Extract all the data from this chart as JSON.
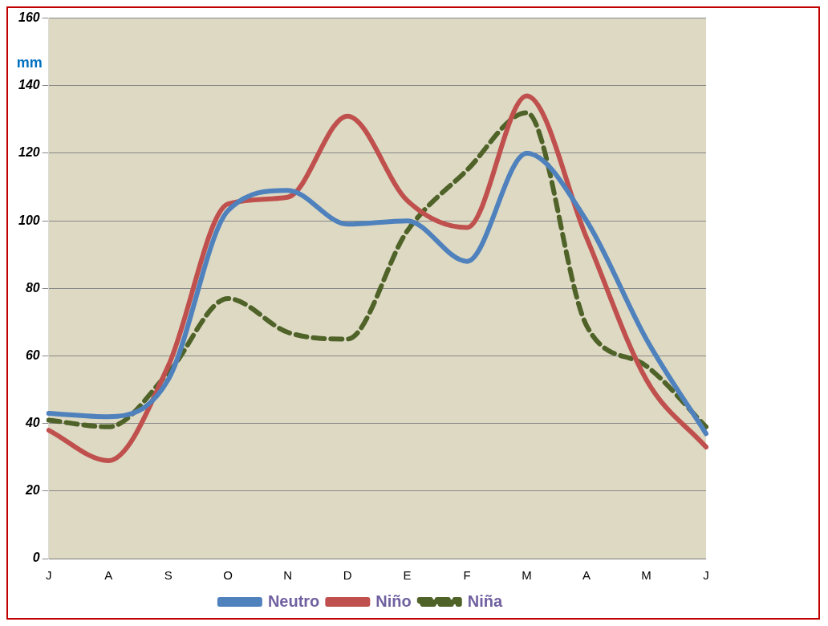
{
  "chart_data": {
    "type": "line",
    "ylabel": "mm",
    "categories": [
      "J",
      "A",
      "S",
      "O",
      "N",
      "D",
      "E",
      "F",
      "M",
      "A",
      "M",
      "J"
    ],
    "series": [
      {
        "name": "Neutro",
        "color": "#4f81bd",
        "values": [
          43,
          42,
          53,
          103,
          109,
          99,
          100,
          88,
          120,
          100,
          65,
          37
        ]
      },
      {
        "name": "Niño",
        "color": "#c0504d",
        "values": [
          38,
          29,
          57,
          105,
          107,
          131,
          106,
          98,
          137,
          95,
          53,
          33
        ]
      },
      {
        "name": "Niña",
        "color": "#4f6228",
        "line_style": "dashed",
        "values": [
          41,
          39,
          55,
          77,
          67,
          65,
          97,
          115,
          132,
          69,
          57,
          39
        ]
      }
    ],
    "ylim": [
      0,
      160
    ],
    "yticks": [
      0,
      20,
      40,
      60,
      80,
      100,
      120,
      140,
      160
    ],
    "grid": "y",
    "legend": "bottom",
    "marker": "none"
  }
}
